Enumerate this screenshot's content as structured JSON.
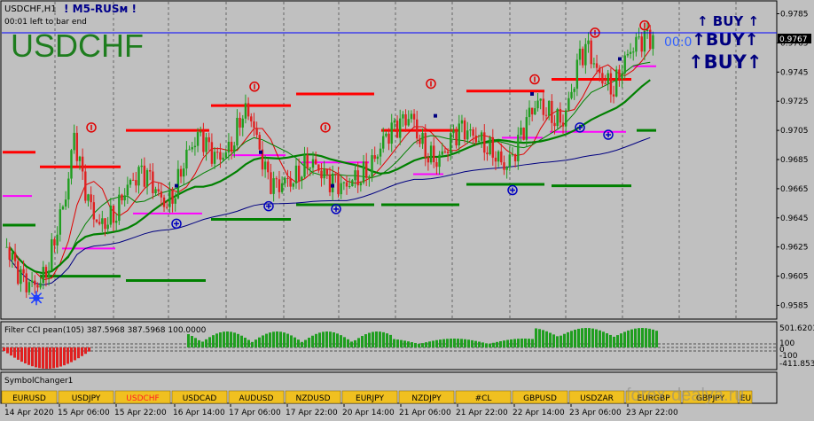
{
  "window": {
    "symbol_title": "USDCHF,H1",
    "indicator_name": "! M5-RUSм !",
    "countdown_text": "00:01 left to bar end",
    "big_symbol": "USDCHF",
    "timer_text": "00:0"
  },
  "signals": {
    "buy_labels": [
      "↑ BUY ↑",
      "↑BUY↑",
      "↑BUY↑"
    ]
  },
  "price_scale": {
    "labels": [
      "0.9785",
      "0.9770",
      "0.9767",
      "0.9745",
      "0.9725",
      "0.9705",
      "0.9685",
      "0.9665",
      "0.9645",
      "0.9625",
      "0.9605",
      "0.9585"
    ],
    "current_price_label": "0.9767",
    "current_price_color": "#0000ff"
  },
  "cci_panel": {
    "label": "Filter CCI pean(105) 387.5968 387.5968 100.0000",
    "scale_labels": [
      "501.6203",
      "100",
      "0",
      "-100",
      "-411.853"
    ],
    "positive_color": "#1f9e1f",
    "negative_color": "#e02020"
  },
  "symbol_changer": {
    "label": "SymbolChanger1",
    "buttons": [
      "EURUSD",
      "USDJPY",
      "USDCHF",
      "USDCAD",
      "AUDUSD",
      "NZDUSD",
      "EURJPY",
      "NZDJPY",
      "#CL",
      "GBPUSD",
      "USDZAR",
      "EURGBP",
      "GBPJPY",
      "EU"
    ],
    "active": "USDCHF"
  },
  "time_axis": {
    "labels": [
      "14 Apr 2020",
      "15 Apr 06:00",
      "15 Apr 22:00",
      "16 Apr 14:00",
      "17 Apr 06:00",
      "17 Apr 22:00",
      "20 Apr 14:00",
      "21 Apr 06:00",
      "21 Apr 22:00",
      "22 Apr 14:00",
      "23 Apr 06:00",
      "23 Apr 22:00"
    ]
  },
  "watermark": "forex-dealya.ru",
  "colors": {
    "background": "#c0c0c0",
    "bull_candle": "#1f9e1f",
    "bear_candle": "#e02020",
    "resistance": "#ff0000",
    "support": "#008000",
    "pivot": "#ff00ff",
    "big_symbol": "#1e7d1e",
    "buy_text": "#00007f"
  },
  "chart_data": {
    "type": "candlestick",
    "timeframe": "H1",
    "yticks": [
      0.9785,
      0.9765,
      0.9745,
      0.9725,
      0.9705,
      0.9685,
      0.9665,
      0.9645,
      0.9625,
      0.9605,
      0.9585
    ],
    "ylim": [
      0.9578,
      0.9792
    ],
    "current_price": 0.9767,
    "horizontal_line": 0.977,
    "close_path": [
      0.9625,
      0.961,
      0.96,
      0.9598,
      0.9602,
      0.9615,
      0.964,
      0.966,
      0.97,
      0.967,
      0.965,
      0.964,
      0.9645,
      0.965,
      0.9665,
      0.967,
      0.9675,
      0.967,
      0.966,
      0.9655,
      0.9665,
      0.9685,
      0.9695,
      0.97,
      0.969,
      0.9685,
      0.969,
      0.97,
      0.972,
      0.9715,
      0.969,
      0.967,
      0.9665,
      0.967,
      0.9672,
      0.968,
      0.9685,
      0.9678,
      0.967,
      0.9668,
      0.9665,
      0.9672,
      0.9675,
      0.968,
      0.969,
      0.97,
      0.9705,
      0.971,
      0.9715,
      0.97,
      0.969,
      0.9685,
      0.969,
      0.97,
      0.9705,
      0.9702,
      0.97,
      0.9695,
      0.969,
      0.968,
      0.9685,
      0.97,
      0.9715,
      0.9725,
      0.972,
      0.9715,
      0.9712,
      0.973,
      0.9755,
      0.976,
      0.9745,
      0.974,
      0.9735,
      0.975,
      0.976,
      0.9765,
      0.9767
    ]
  }
}
